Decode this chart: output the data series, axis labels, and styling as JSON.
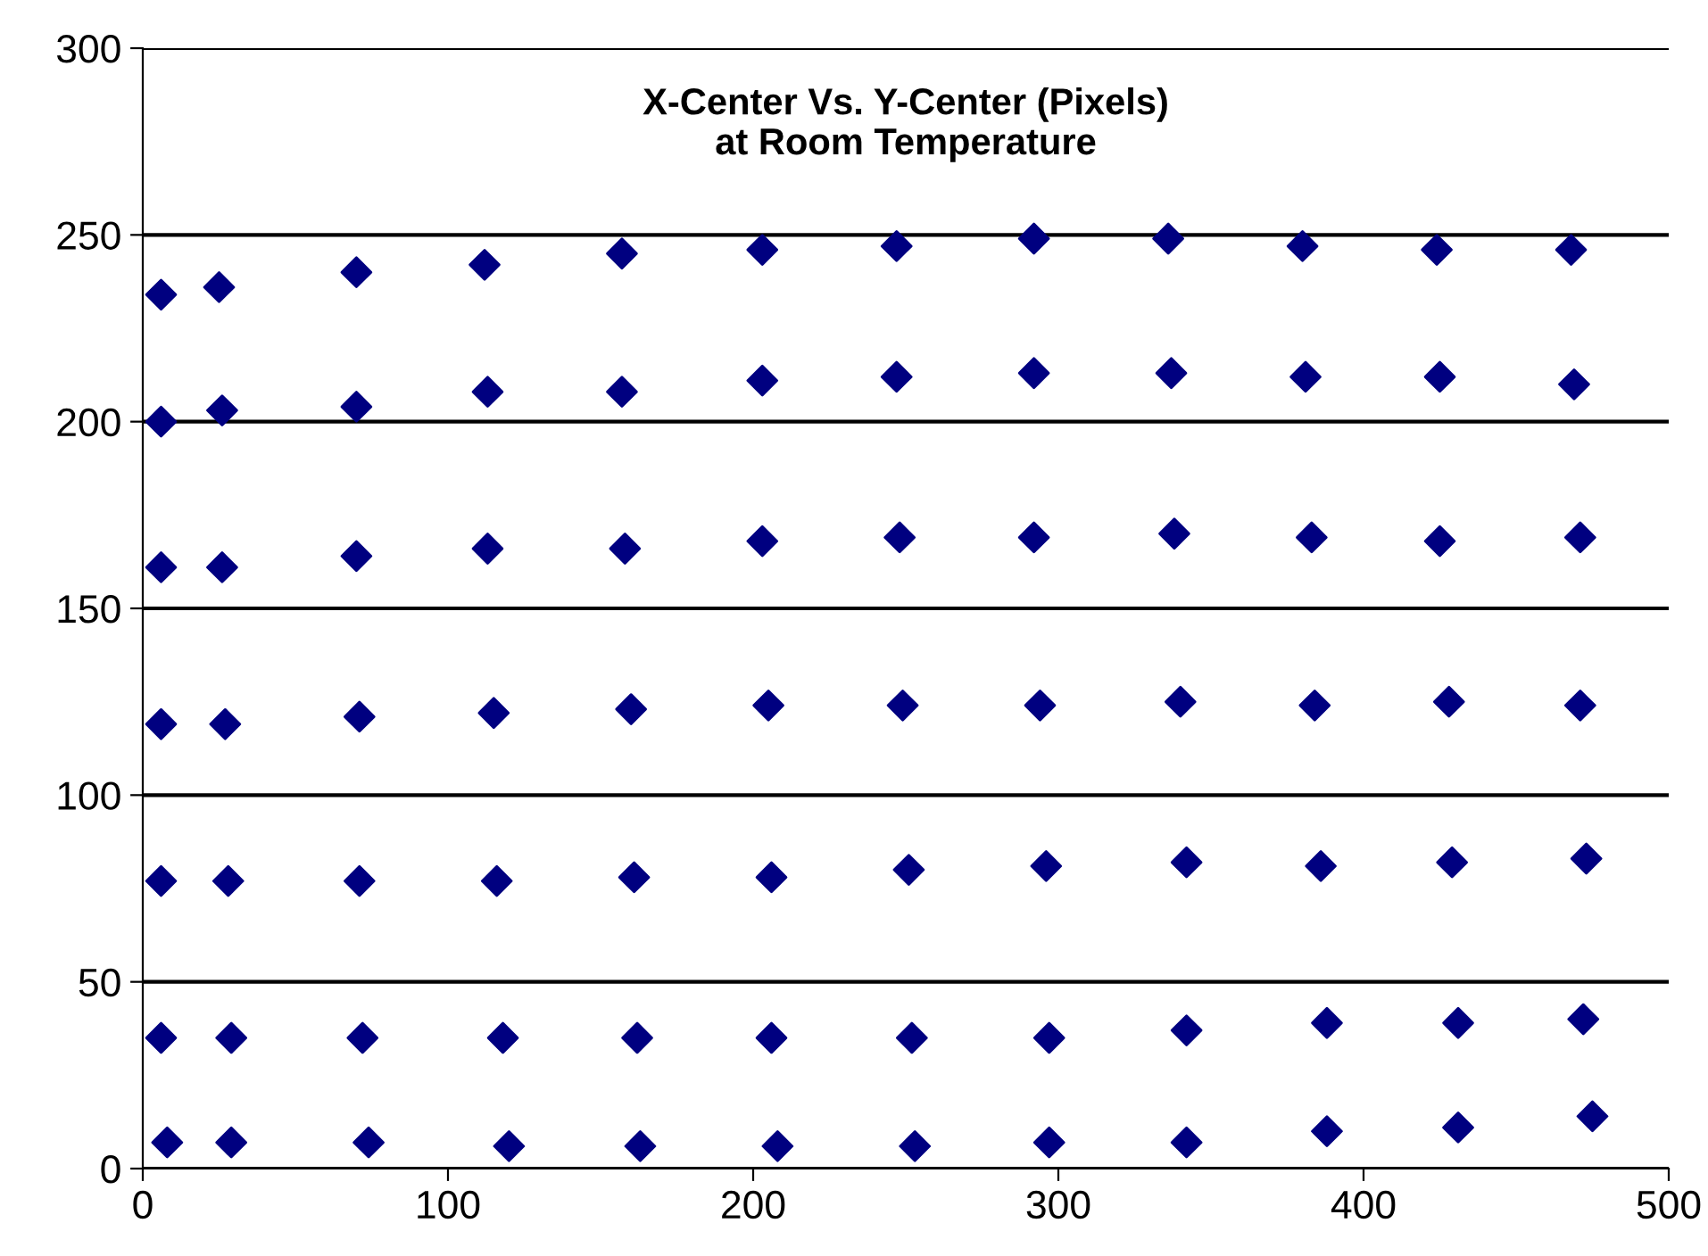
{
  "chart_data": {
    "type": "scatter",
    "title": "X-Center Vs. Y-Center (Pixels)\nat Room Temperature",
    "x": [
      6,
      25,
      70,
      112,
      157,
      203,
      247,
      292,
      336,
      380,
      424,
      468,
      6,
      26,
      70,
      113,
      157,
      203,
      247,
      292,
      337,
      381,
      425,
      469,
      6,
      26,
      70,
      113,
      158,
      203,
      248,
      292,
      338,
      383,
      425,
      471,
      6,
      27,
      71,
      115,
      160,
      205,
      249,
      294,
      340,
      384,
      428,
      471,
      6,
      28,
      71,
      116,
      161,
      206,
      251,
      296,
      342,
      386,
      429,
      473,
      6,
      29,
      72,
      118,
      162,
      206,
      252,
      297,
      342,
      388,
      431,
      472,
      8,
      29,
      74,
      120,
      163,
      208,
      253,
      297,
      342,
      388,
      431,
      475
    ],
    "series": [
      {
        "color": "#000080",
        "values": [
          234,
          236,
          240,
          242,
          245,
          246,
          247,
          249,
          249,
          247,
          246,
          246,
          200,
          203,
          204,
          208,
          208,
          211,
          212,
          213,
          213,
          212,
          212,
          210,
          161,
          161,
          164,
          166,
          166,
          168,
          169,
          169,
          170,
          169,
          168,
          169,
          119,
          119,
          121,
          122,
          123,
          124,
          124,
          124,
          125,
          124,
          125,
          124,
          77,
          77,
          77,
          77,
          78,
          78,
          80,
          81,
          82,
          81,
          82,
          83,
          35,
          35,
          35,
          35,
          35,
          35,
          35,
          35,
          37,
          39,
          39,
          40,
          7,
          7,
          7,
          6,
          6,
          6,
          6,
          7,
          7,
          10,
          11,
          14
        ]
      }
    ],
    "marker": "diamond",
    "grid": "y",
    "legend": false,
    "xlim": [
      0,
      500
    ],
    "xticks": [
      0,
      100,
      200,
      300,
      400,
      500
    ],
    "ylim": [
      0,
      300
    ],
    "yticks": [
      0,
      50,
      100,
      150,
      200,
      250,
      300
    ]
  }
}
